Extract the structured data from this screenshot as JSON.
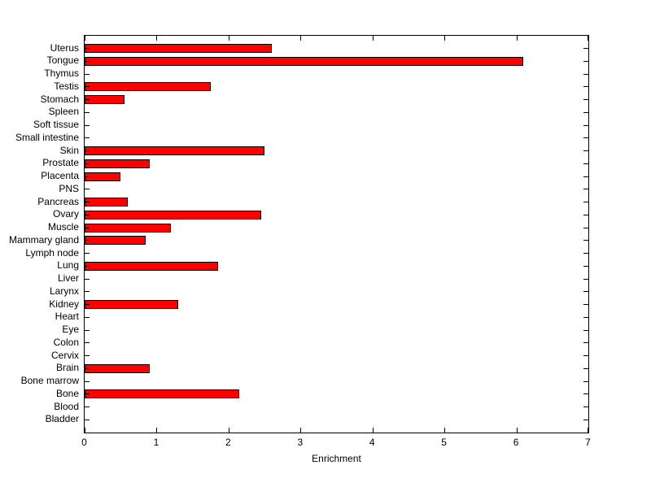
{
  "chart_data": {
    "type": "bar",
    "orientation": "horizontal",
    "title": "",
    "xlabel": "Enrichment",
    "ylabel": "",
    "xlim": [
      0,
      7
    ],
    "xticks": [
      0,
      1,
      2,
      3,
      4,
      5,
      6,
      7
    ],
    "grid": false,
    "legend": null,
    "bar_color": "#ff0000",
    "bar_edge_color": "#000000",
    "axis_color": "#000000",
    "background_color": "#ffffff",
    "categories": [
      "Uterus",
      "Tongue",
      "Thymus",
      "Testis",
      "Stomach",
      "Spleen",
      "Soft tissue",
      "Small intestine",
      "Skin",
      "Prostate",
      "Placenta",
      "PNS",
      "Pancreas",
      "Ovary",
      "Muscle",
      "Mammary gland",
      "Lymph node",
      "Lung",
      "Liver",
      "Larynx",
      "Kidney",
      "Heart",
      "Eye",
      "Colon",
      "Cervix",
      "Brain",
      "Bone marrow",
      "Bone",
      "Blood",
      "Bladder"
    ],
    "values": [
      2.6,
      6.1,
      0,
      1.75,
      0.55,
      0,
      0,
      0,
      2.5,
      0.9,
      0.5,
      0,
      0.6,
      2.45,
      1.2,
      0.85,
      0,
      1.85,
      0,
      0,
      1.3,
      0,
      0,
      0,
      0,
      0.9,
      0,
      2.15,
      0,
      0
    ]
  }
}
